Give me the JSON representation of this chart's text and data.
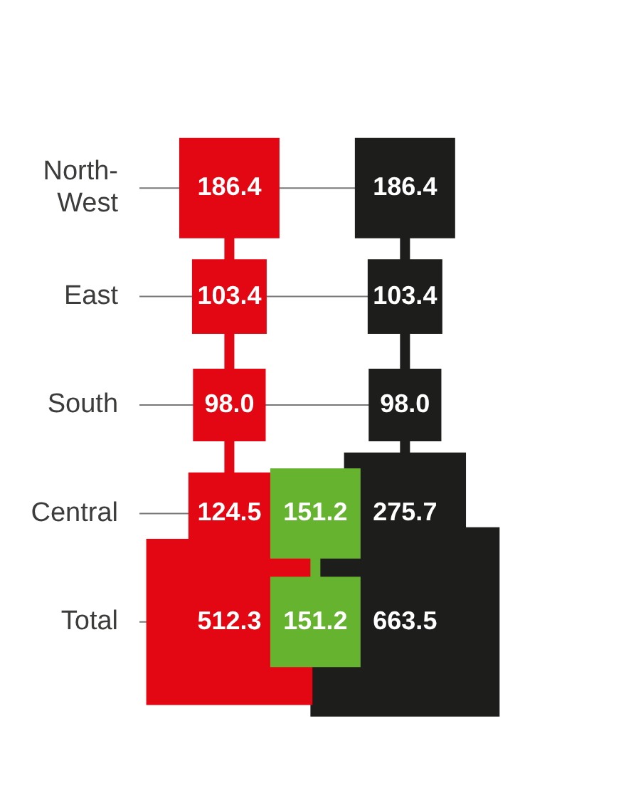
{
  "chart_data": {
    "type": "other",
    "categories": [
      "North-\nWest",
      "East",
      "South",
      "Central",
      "Total"
    ],
    "data_labels": true,
    "legend": false,
    "series": [
      {
        "color": "#e30613",
        "values": [
          186.4,
          103.4,
          98.0,
          124.5,
          512.3
        ],
        "value_labels": [
          "186.4",
          "103.4",
          "98.0",
          "124.5",
          "512.3"
        ]
      },
      {
        "color": "#65b32e",
        "values": [
          null,
          null,
          null,
          151.2,
          151.2
        ],
        "value_labels": [
          null,
          null,
          null,
          "151.2",
          "151.2"
        ]
      },
      {
        "color": "#1d1d1b",
        "values": [
          186.4,
          103.4,
          98.0,
          275.7,
          663.5
        ],
        "value_labels": [
          "186.4",
          "103.4",
          "98.0",
          "275.7",
          "663.5"
        ]
      }
    ]
  }
}
